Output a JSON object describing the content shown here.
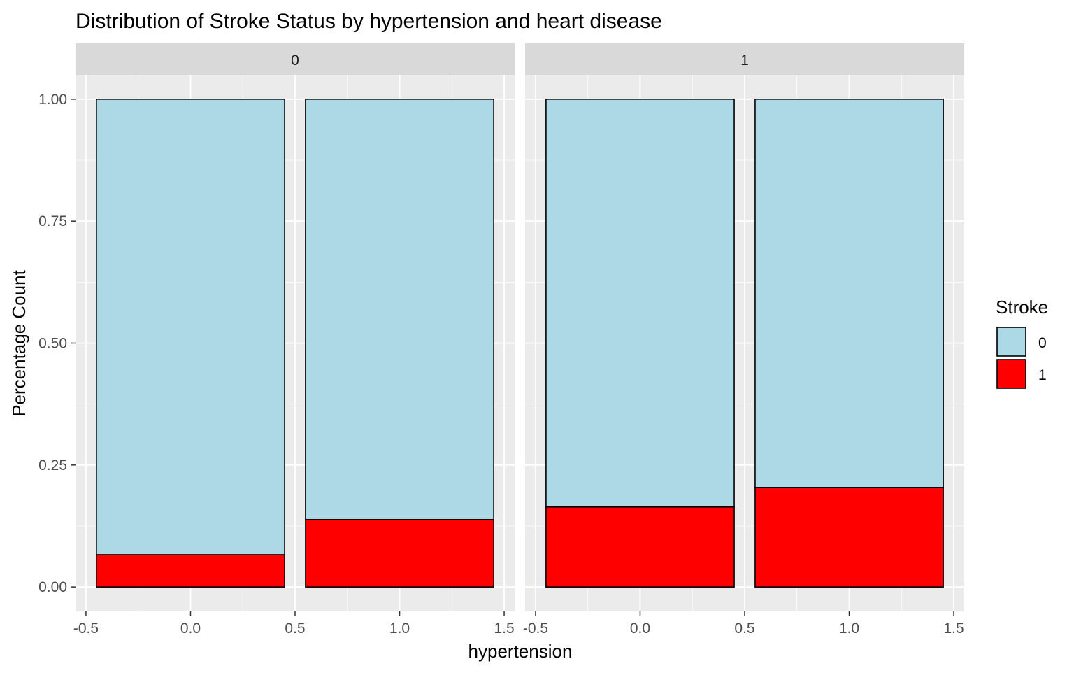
{
  "chart_data": {
    "type": "bar",
    "subtype": "stacked-proportion-faceted",
    "title": "Distribution of Stroke Status by hypertension and heart disease",
    "xlabel": "hypertension",
    "ylabel": "Percentage Count",
    "xlim": [
      -0.55,
      1.55
    ],
    "ylim": [
      -0.05,
      1.05
    ],
    "x_ticks": [
      -0.5,
      0.0,
      0.5,
      1.0,
      1.5
    ],
    "x_tick_labels": [
      "-0.5",
      "0.0",
      "0.5",
      "1.0",
      "1.5"
    ],
    "y_ticks": [
      0,
      0.25,
      0.5,
      0.75,
      1.0
    ],
    "y_tick_labels": [
      "0.00",
      "0.25",
      "0.50",
      "0.75",
      "1.00"
    ],
    "grid": true,
    "legend": {
      "title": "Stroke",
      "position": "right",
      "entries": [
        {
          "label": "0",
          "color": "#add8e6"
        },
        {
          "label": "1",
          "color": "#ff0000"
        }
      ]
    },
    "facets": [
      {
        "label": "0",
        "bars": [
          {
            "x": 0,
            "stroke_0": 0.934,
            "stroke_1": 0.066
          },
          {
            "x": 1,
            "stroke_0": 0.862,
            "stroke_1": 0.138
          }
        ]
      },
      {
        "label": "1",
        "bars": [
          {
            "x": 0,
            "stroke_0": 0.836,
            "stroke_1": 0.164
          },
          {
            "x": 1,
            "stroke_0": 0.796,
            "stroke_1": 0.204
          }
        ]
      }
    ],
    "colors": {
      "panel_bg": "#ebebeb",
      "strip_bg": "#d9d9d9",
      "grid": "#ffffff",
      "bar_outline": "#000000",
      "stroke_0": "#add8e6",
      "stroke_1": "#ff0000"
    }
  }
}
